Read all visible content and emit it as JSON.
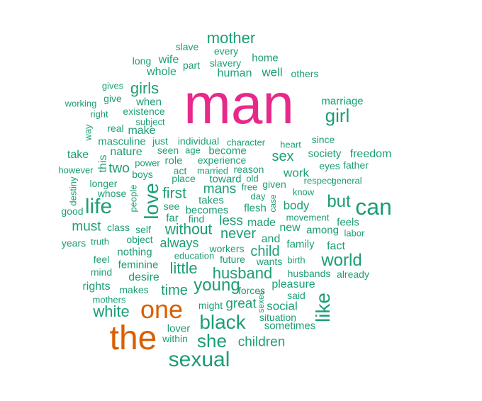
{
  "colors": {
    "small": "#1b9e77",
    "medium": "#d95f02",
    "large": "#e7298a"
  },
  "words": [
    {
      "text": "man",
      "tier": "large"
    },
    {
      "text": "the",
      "tier": "medium"
    },
    {
      "text": "one",
      "tier": "medium"
    },
    {
      "text": "mother",
      "tier": "small"
    },
    {
      "text": "slave",
      "tier": "small"
    },
    {
      "text": "every",
      "tier": "small"
    },
    {
      "text": "long",
      "tier": "small"
    },
    {
      "text": "wife",
      "tier": "small"
    },
    {
      "text": "part",
      "tier": "small"
    },
    {
      "text": "slavery",
      "tier": "small"
    },
    {
      "text": "home",
      "tier": "small"
    },
    {
      "text": "whole",
      "tier": "small"
    },
    {
      "text": "human",
      "tier": "small"
    },
    {
      "text": "well",
      "tier": "small"
    },
    {
      "text": "others",
      "tier": "small"
    },
    {
      "text": "gives",
      "tier": "small"
    },
    {
      "text": "girls",
      "tier": "small"
    },
    {
      "text": "give",
      "tier": "small"
    },
    {
      "text": "working",
      "tier": "small"
    },
    {
      "text": "when",
      "tier": "small"
    },
    {
      "text": "marriage",
      "tier": "small"
    },
    {
      "text": "right",
      "tier": "small"
    },
    {
      "text": "existence",
      "tier": "small"
    },
    {
      "text": "girl",
      "tier": "small"
    },
    {
      "text": "subject",
      "tier": "small"
    },
    {
      "text": "real",
      "tier": "small"
    },
    {
      "text": "make",
      "tier": "small"
    },
    {
      "text": "way",
      "tier": "small"
    },
    {
      "text": "masculine",
      "tier": "small"
    },
    {
      "text": "just",
      "tier": "small"
    },
    {
      "text": "individual",
      "tier": "small"
    },
    {
      "text": "character",
      "tier": "small"
    },
    {
      "text": "heart",
      "tier": "small"
    },
    {
      "text": "since",
      "tier": "small"
    },
    {
      "text": "take",
      "tier": "small"
    },
    {
      "text": "nature",
      "tier": "small"
    },
    {
      "text": "seen",
      "tier": "small"
    },
    {
      "text": "age",
      "tier": "small"
    },
    {
      "text": "become",
      "tier": "small"
    },
    {
      "text": "sex",
      "tier": "small"
    },
    {
      "text": "society",
      "tier": "small"
    },
    {
      "text": "freedom",
      "tier": "small"
    },
    {
      "text": "this",
      "tier": "small"
    },
    {
      "text": "power",
      "tier": "small"
    },
    {
      "text": "role",
      "tier": "small"
    },
    {
      "text": "experience",
      "tier": "small"
    },
    {
      "text": "eyes",
      "tier": "small"
    },
    {
      "text": "father",
      "tier": "small"
    },
    {
      "text": "however",
      "tier": "small"
    },
    {
      "text": "two",
      "tier": "small"
    },
    {
      "text": "act",
      "tier": "small"
    },
    {
      "text": "married",
      "tier": "small"
    },
    {
      "text": "reason",
      "tier": "small"
    },
    {
      "text": "work",
      "tier": "small"
    },
    {
      "text": "boys",
      "tier": "small"
    },
    {
      "text": "place",
      "tier": "small"
    },
    {
      "text": "toward",
      "tier": "small"
    },
    {
      "text": "old",
      "tier": "small"
    },
    {
      "text": "respect",
      "tier": "small"
    },
    {
      "text": "general",
      "tier": "small"
    },
    {
      "text": "destiny",
      "tier": "small"
    },
    {
      "text": "longer",
      "tier": "small"
    },
    {
      "text": "love",
      "tier": "small"
    },
    {
      "text": "mans",
      "tier": "small"
    },
    {
      "text": "free",
      "tier": "small"
    },
    {
      "text": "given",
      "tier": "small"
    },
    {
      "text": "whose",
      "tier": "small"
    },
    {
      "text": "people",
      "tier": "small"
    },
    {
      "text": "first",
      "tier": "small"
    },
    {
      "text": "day",
      "tier": "small"
    },
    {
      "text": "know",
      "tier": "small"
    },
    {
      "text": "life",
      "tier": "small"
    },
    {
      "text": "takes",
      "tier": "small"
    },
    {
      "text": "case",
      "tier": "small"
    },
    {
      "text": "but",
      "tier": "small"
    },
    {
      "text": "can",
      "tier": "small"
    },
    {
      "text": "good",
      "tier": "small"
    },
    {
      "text": "see",
      "tier": "small"
    },
    {
      "text": "becomes",
      "tier": "small"
    },
    {
      "text": "flesh",
      "tier": "small"
    },
    {
      "text": "body",
      "tier": "small"
    },
    {
      "text": "far",
      "tier": "small"
    },
    {
      "text": "find",
      "tier": "small"
    },
    {
      "text": "less",
      "tier": "small"
    },
    {
      "text": "movement",
      "tier": "small"
    },
    {
      "text": "must",
      "tier": "small"
    },
    {
      "text": "class",
      "tier": "small"
    },
    {
      "text": "self",
      "tier": "small"
    },
    {
      "text": "without",
      "tier": "small"
    },
    {
      "text": "made",
      "tier": "small"
    },
    {
      "text": "new",
      "tier": "small"
    },
    {
      "text": "among",
      "tier": "small"
    },
    {
      "text": "feels",
      "tier": "small"
    },
    {
      "text": "labor",
      "tier": "small"
    },
    {
      "text": "never",
      "tier": "small"
    },
    {
      "text": "years",
      "tier": "small"
    },
    {
      "text": "truth",
      "tier": "small"
    },
    {
      "text": "object",
      "tier": "small"
    },
    {
      "text": "always",
      "tier": "small"
    },
    {
      "text": "and",
      "tier": "small"
    },
    {
      "text": "family",
      "tier": "small"
    },
    {
      "text": "fact",
      "tier": "small"
    },
    {
      "text": "nothing",
      "tier": "small"
    },
    {
      "text": "workers",
      "tier": "small"
    },
    {
      "text": "child",
      "tier": "small"
    },
    {
      "text": "feel",
      "tier": "small"
    },
    {
      "text": "education",
      "tier": "small"
    },
    {
      "text": "future",
      "tier": "small"
    },
    {
      "text": "wants",
      "tier": "small"
    },
    {
      "text": "birth",
      "tier": "small"
    },
    {
      "text": "world",
      "tier": "small"
    },
    {
      "text": "feminine",
      "tier": "small"
    },
    {
      "text": "little",
      "tier": "small"
    },
    {
      "text": "mind",
      "tier": "small"
    },
    {
      "text": "husband",
      "tier": "small"
    },
    {
      "text": "husbands",
      "tier": "small"
    },
    {
      "text": "already",
      "tier": "small"
    },
    {
      "text": "desire",
      "tier": "small"
    },
    {
      "text": "rights",
      "tier": "small"
    },
    {
      "text": "young",
      "tier": "small"
    },
    {
      "text": "pleasure",
      "tier": "small"
    },
    {
      "text": "makes",
      "tier": "small"
    },
    {
      "text": "time",
      "tier": "small"
    },
    {
      "text": "forces",
      "tier": "small"
    },
    {
      "text": "sexes",
      "tier": "small"
    },
    {
      "text": "said",
      "tier": "small"
    },
    {
      "text": "mothers",
      "tier": "small"
    },
    {
      "text": "like",
      "tier": "small"
    },
    {
      "text": "might",
      "tier": "small"
    },
    {
      "text": "great",
      "tier": "small"
    },
    {
      "text": "social",
      "tier": "small"
    },
    {
      "text": "white",
      "tier": "small"
    },
    {
      "text": "situation",
      "tier": "small"
    },
    {
      "text": "black",
      "tier": "small"
    },
    {
      "text": "sometimes",
      "tier": "small"
    },
    {
      "text": "lover",
      "tier": "small"
    },
    {
      "text": "within",
      "tier": "small"
    },
    {
      "text": "she",
      "tier": "small"
    },
    {
      "text": "children",
      "tier": "small"
    },
    {
      "text": "sexual",
      "tier": "small"
    }
  ]
}
